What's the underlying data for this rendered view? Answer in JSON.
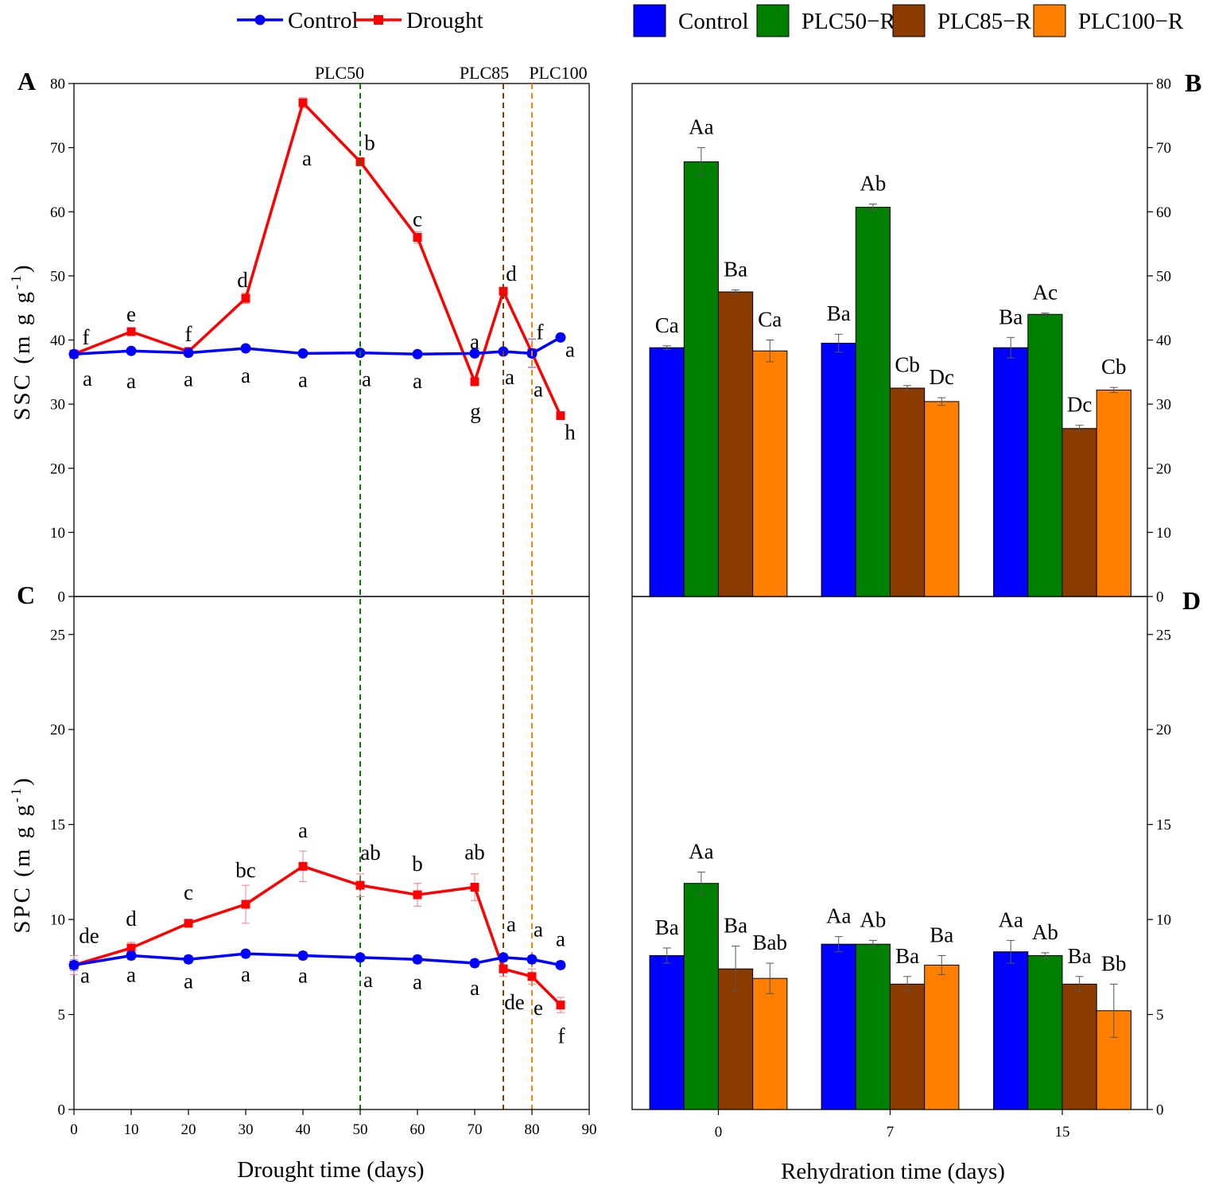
{
  "legend_top_left": [
    {
      "name": "Control",
      "color": "#0000ff",
      "marker": "circle"
    },
    {
      "name": "Drought",
      "color": "#ff0000",
      "marker": "square"
    }
  ],
  "legend_top_right": [
    {
      "name": "Control",
      "color": "#0000ff"
    },
    {
      "name": "PLC50−R",
      "color": "#008000"
    },
    {
      "name": "PLC85−R",
      "color": "#8b3a00"
    },
    {
      "name": "PLC100−R",
      "color": "#ff8000"
    }
  ],
  "chart_data": [
    {
      "panel": "A",
      "type": "line",
      "xlabel": "",
      "ylabel": "SSC",
      "ylabel_unit": "(m g g",
      "ylabel_sup": "-1",
      "ylabel_close": ")",
      "xlim": [
        0,
        90
      ],
      "ylim": [
        0,
        80
      ],
      "yticks": [
        0,
        10,
        20,
        30,
        40,
        50,
        60,
        70,
        80
      ],
      "vlines": [
        {
          "x": 50,
          "label": "PLC50",
          "color": "#008000"
        },
        {
          "x": 75,
          "label": "PLC85",
          "color": "#8b3a00"
        },
        {
          "x": 80,
          "label": "PLC100",
          "color": "#ff8000"
        }
      ],
      "series": [
        {
          "name": "Control",
          "color": "#0000ff",
          "marker": "circle",
          "x": [
            0,
            10,
            20,
            30,
            40,
            50,
            60,
            70,
            75,
            80,
            85
          ],
          "y": [
            37.8,
            38.3,
            38.0,
            38.7,
            37.9,
            38.0,
            37.8,
            37.9,
            38.2,
            37.9,
            40.4
          ],
          "err": [
            0.4,
            0.4,
            0.5,
            0.4,
            0.3,
            0.3,
            0.3,
            0.3,
            0.4,
            2.2,
            0.5
          ],
          "labels": [
            "a",
            "a",
            "a",
            "a",
            "a",
            "a",
            "a",
            "a",
            "a",
            "a",
            "a"
          ]
        },
        {
          "name": "Drought",
          "color": "#ff0000",
          "marker": "square",
          "x": [
            0,
            10,
            20,
            30,
            40,
            50,
            60,
            70,
            75,
            80,
            85
          ],
          "y": [
            37.8,
            41.3,
            38.2,
            46.5,
            77.0,
            67.8,
            56.0,
            33.5,
            47.6,
            38.0,
            28.2
          ],
          "err": [
            0.4,
            0.5,
            0.4,
            0.8,
            0.8,
            0.6,
            0.9,
            0.5,
            0.5,
            2.2,
            0.4
          ],
          "labels": [
            "f",
            "e",
            "f",
            "d",
            "a",
            "b",
            "c",
            "g",
            "d",
            "f",
            "h"
          ]
        }
      ]
    },
    {
      "panel": "B",
      "type": "bar",
      "xlabel": "",
      "ylim": [
        0,
        80
      ],
      "yticks": [
        0,
        10,
        20,
        30,
        40,
        50,
        60,
        70,
        80
      ],
      "categories": [
        "0",
        "7",
        "15"
      ],
      "series": [
        {
          "name": "Control",
          "color": "#0000ff",
          "values": [
            38.8,
            39.5,
            38.8
          ],
          "err": [
            0.3,
            1.4,
            1.6
          ],
          "labels": [
            "Ca",
            "Ba",
            "Ba"
          ]
        },
        {
          "name": "PLC50−R",
          "color": "#008000",
          "values": [
            67.8,
            60.7,
            44.0
          ],
          "err": [
            2.2,
            0.5,
            0.2
          ],
          "labels": [
            "Aa",
            "Ab",
            "Ac"
          ]
        },
        {
          "name": "PLC85−R",
          "color": "#8b3a00",
          "values": [
            47.5,
            32.5,
            26.2
          ],
          "err": [
            0.3,
            0.4,
            0.5
          ],
          "labels": [
            "Ba",
            "Cb",
            "Dc"
          ]
        },
        {
          "name": "PLC100−R",
          "color": "#ff8000",
          "values": [
            38.3,
            30.4,
            32.2
          ],
          "err": [
            1.7,
            0.6,
            0.4
          ],
          "labels": [
            "Ca",
            "Dc",
            "Cb"
          ]
        }
      ]
    },
    {
      "panel": "C",
      "type": "line",
      "xlabel": "Drought time (days)",
      "ylabel": "SPC",
      "ylabel_unit": "(m g g",
      "ylabel_sup": "-1",
      "ylabel_close": ")",
      "xlim": [
        0,
        90
      ],
      "ylim": [
        0,
        27
      ],
      "yticks": [
        0,
        5,
        10,
        15,
        20,
        25
      ],
      "xticks": [
        0,
        10,
        20,
        30,
        40,
        50,
        60,
        70,
        80,
        90
      ],
      "series": [
        {
          "name": "Control",
          "color": "#0000ff",
          "marker": "circle",
          "x": [
            0,
            10,
            20,
            30,
            40,
            50,
            60,
            70,
            75,
            80,
            85
          ],
          "y": [
            7.6,
            8.1,
            7.9,
            8.2,
            8.1,
            8.0,
            7.9,
            7.7,
            8.0,
            7.9,
            7.6
          ],
          "err": [
            0.3,
            0.2,
            0.2,
            0.2,
            0.2,
            0.2,
            0.2,
            0.2,
            0.2,
            0.2,
            0.2
          ],
          "labels": [
            "a",
            "a",
            "a",
            "a",
            "a",
            "a",
            "a",
            "a",
            "a",
            "a",
            "a"
          ]
        },
        {
          "name": "Drought",
          "color": "#ff0000",
          "marker": "square",
          "x": [
            0,
            10,
            20,
            30,
            40,
            50,
            60,
            70,
            75,
            80,
            85
          ],
          "y": [
            7.6,
            8.5,
            9.8,
            10.8,
            12.8,
            11.8,
            11.3,
            11.7,
            7.4,
            7.0,
            5.5
          ],
          "err": [
            0.5,
            0.3,
            0.2,
            1.0,
            0.8,
            0.6,
            0.6,
            0.7,
            0.4,
            0.4,
            0.4
          ],
          "labels": [
            "de",
            "d",
            "c",
            "bc",
            "a",
            "ab",
            "b",
            "ab",
            "de",
            "e",
            "f"
          ]
        }
      ]
    },
    {
      "panel": "D",
      "type": "bar",
      "xlabel": "Rehydration time (days)",
      "ylim": [
        0,
        27
      ],
      "yticks": [
        0,
        5,
        10,
        15,
        20,
        25
      ],
      "categories": [
        "0",
        "7",
        "15"
      ],
      "series": [
        {
          "name": "Control",
          "color": "#0000ff",
          "values": [
            8.1,
            8.7,
            8.3
          ],
          "err": [
            0.4,
            0.4,
            0.6
          ],
          "labels": [
            "Ba",
            "Aa",
            "Aa"
          ]
        },
        {
          "name": "PLC50−R",
          "color": "#008000",
          "values": [
            11.9,
            8.7,
            8.1
          ],
          "err": [
            0.6,
            0.2,
            0.15
          ],
          "labels": [
            "Aa",
            "Ab",
            "Ab"
          ]
        },
        {
          "name": "PLC85−R",
          "color": "#8b3a00",
          "values": [
            7.4,
            6.6,
            6.6
          ],
          "err": [
            1.2,
            0.4,
            0.4
          ],
          "labels": [
            "Ba",
            "Ba",
            "Ba"
          ]
        },
        {
          "name": "PLC100−R",
          "color": "#ff8000",
          "values": [
            6.9,
            7.6,
            5.2
          ],
          "err": [
            0.8,
            0.5,
            1.4
          ],
          "labels": [
            "Bab",
            "Ba",
            "Bb"
          ]
        }
      ]
    }
  ]
}
